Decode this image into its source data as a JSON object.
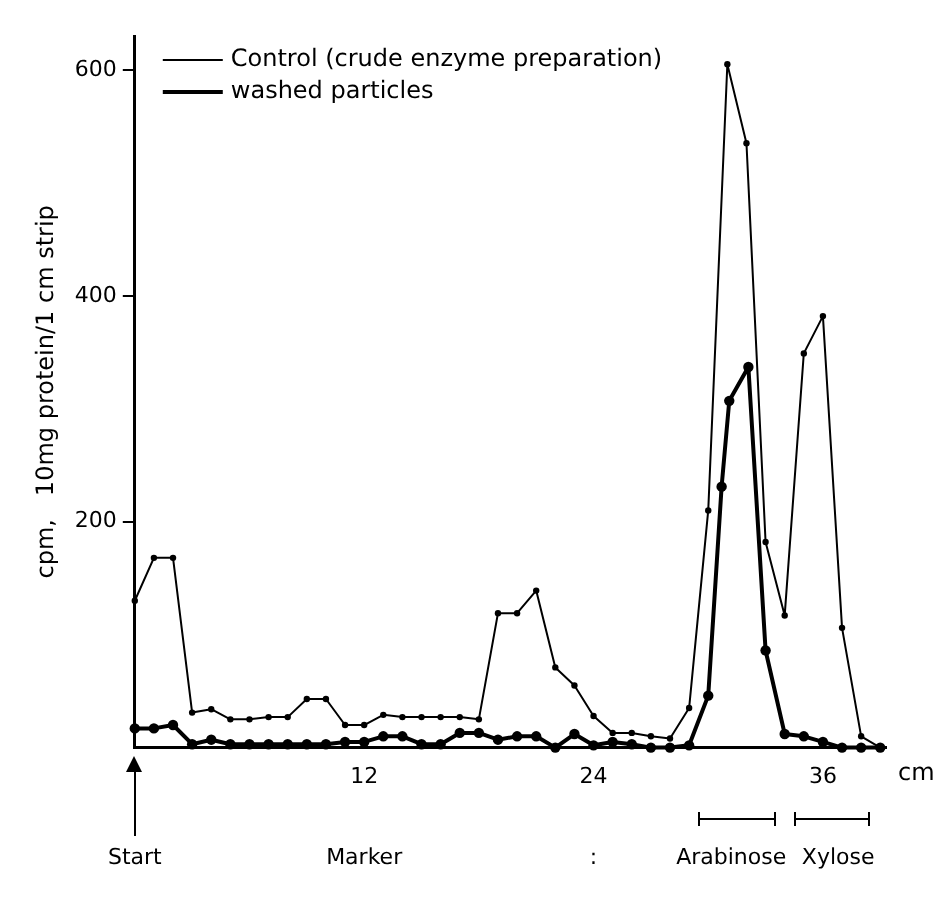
{
  "chart_data": {
    "type": "line",
    "ylabel": "cpm,   10mg protein/1 cm strip",
    "xlabel": "cm",
    "x": [
      0,
      1,
      2,
      3,
      4,
      5,
      6,
      7,
      8,
      9,
      10,
      11,
      12,
      13,
      14,
      15,
      16,
      17,
      18,
      19,
      20,
      21,
      22,
      23,
      24,
      25,
      26,
      27,
      28,
      29,
      30,
      31,
      32,
      33,
      34,
      35,
      36,
      37,
      38,
      39
    ],
    "series": [
      {
        "name": "Control (crude enzyme preparation)",
        "color": "#000000",
        "values": [
          130,
          168,
          168,
          31,
          34,
          25,
          25,
          27,
          27,
          43,
          43,
          20,
          20,
          29,
          27,
          27,
          27,
          27,
          25,
          119,
          119,
          139,
          71,
          55,
          28,
          13,
          13,
          10,
          8,
          35,
          210,
          605,
          535,
          182,
          117,
          349,
          382,
          106,
          10,
          0
        ]
      },
      {
        "name": "washed particles",
        "color": "#000000",
        "x": [
          0,
          1,
          2,
          3,
          4,
          5,
          6,
          7,
          8,
          9,
          10,
          11,
          12,
          13,
          14,
          15,
          16,
          17,
          18,
          19,
          20,
          21,
          22,
          23,
          24,
          25,
          26,
          27,
          28,
          29,
          30,
          30.7,
          31.1,
          32.1,
          33,
          34,
          35,
          36,
          37,
          38,
          39
        ],
        "values": [
          17,
          17,
          20,
          3,
          7,
          3,
          3,
          3,
          3,
          3,
          3,
          5,
          5,
          10,
          10,
          3,
          3,
          13,
          13,
          7,
          10,
          10,
          0,
          12,
          2,
          5,
          3,
          0,
          0,
          2,
          46,
          231,
          307,
          337,
          86,
          12,
          10,
          5,
          0,
          0,
          0
        ]
      }
    ],
    "xlim": [
      0,
      39.3
    ],
    "xticks": [
      12,
      24,
      36
    ],
    "ylim": [
      0,
      630
    ],
    "yticks": [
      200,
      400,
      600
    ],
    "annotations": [
      "Start",
      "Marker",
      ":",
      "Arabinose",
      "Xylose"
    ],
    "grid": false,
    "legend": "top left",
    "marker": "circle",
    "line_style": "solid"
  }
}
